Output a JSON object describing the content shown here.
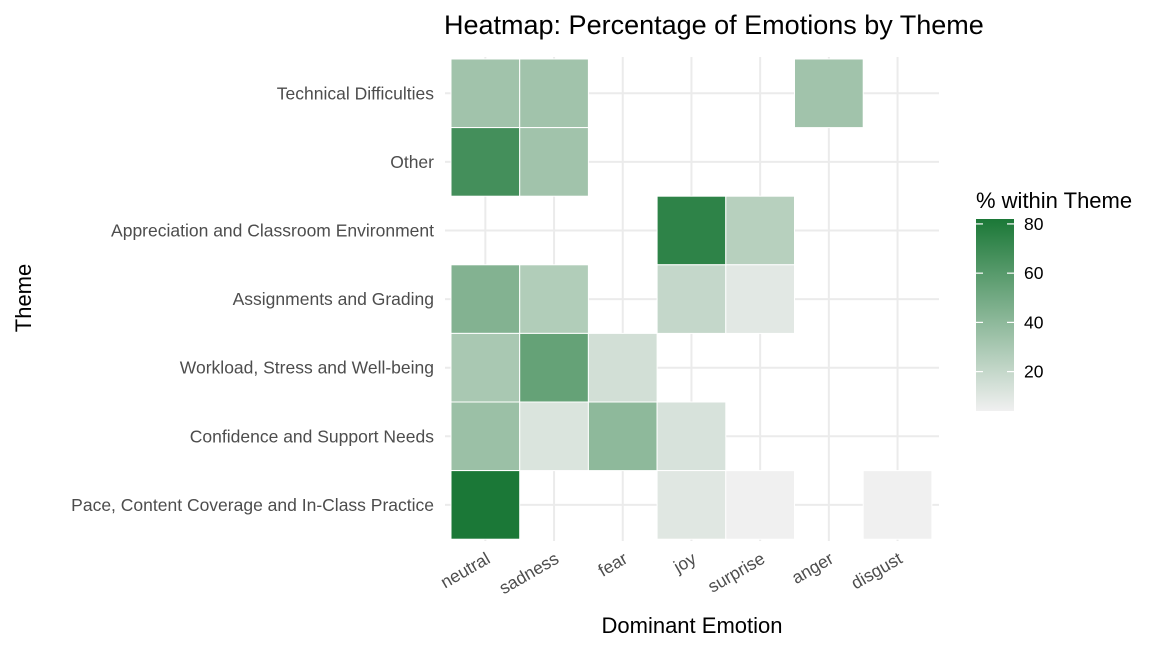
{
  "chart_data": {
    "type": "heatmap",
    "title": "Heatmap: Percentage of Emotions by Theme",
    "xlabel": "Dominant Emotion",
    "ylabel": "Theme",
    "x_categories": [
      "neutral",
      "sadness",
      "fear",
      "joy",
      "surprise",
      "anger",
      "disgust"
    ],
    "y_categories": [
      "Technical Difficulties",
      "Other",
      "Appreciation and Classroom Environment",
      "Assignments and Grading",
      "Workload, Stress and Well-being",
      "Confidence and Support Needs",
      "Pace, Content Coverage and In-Class Practice"
    ],
    "cells": [
      {
        "theme": "Technical Difficulties",
        "emotion": "neutral",
        "value": 33
      },
      {
        "theme": "Technical Difficulties",
        "emotion": "sadness",
        "value": 33
      },
      {
        "theme": "Technical Difficulties",
        "emotion": "anger",
        "value": 33
      },
      {
        "theme": "Other",
        "emotion": "neutral",
        "value": 67
      },
      {
        "theme": "Other",
        "emotion": "sadness",
        "value": 33
      },
      {
        "theme": "Appreciation and Classroom Environment",
        "emotion": "joy",
        "value": 75
      },
      {
        "theme": "Appreciation and Classroom Environment",
        "emotion": "surprise",
        "value": 25
      },
      {
        "theme": "Assignments and Grading",
        "emotion": "neutral",
        "value": 44
      },
      {
        "theme": "Assignments and Grading",
        "emotion": "sadness",
        "value": 27
      },
      {
        "theme": "Assignments and Grading",
        "emotion": "joy",
        "value": 20
      },
      {
        "theme": "Assignments and Grading",
        "emotion": "surprise",
        "value": 9
      },
      {
        "theme": "Workload, Stress and Well-being",
        "emotion": "neutral",
        "value": 30
      },
      {
        "theme": "Workload, Stress and Well-being",
        "emotion": "sadness",
        "value": 55
      },
      {
        "theme": "Workload, Stress and Well-being",
        "emotion": "fear",
        "value": 15
      },
      {
        "theme": "Confidence and Support Needs",
        "emotion": "neutral",
        "value": 35
      },
      {
        "theme": "Confidence and Support Needs",
        "emotion": "sadness",
        "value": 12
      },
      {
        "theme": "Confidence and Support Needs",
        "emotion": "fear",
        "value": 40
      },
      {
        "theme": "Confidence and Support Needs",
        "emotion": "joy",
        "value": 13
      },
      {
        "theme": "Pace, Content Coverage and In-Class Practice",
        "emotion": "neutral",
        "value": 82
      },
      {
        "theme": "Pace, Content Coverage and In-Class Practice",
        "emotion": "joy",
        "value": 10
      },
      {
        "theme": "Pace, Content Coverage and In-Class Practice",
        "emotion": "surprise",
        "value": 4
      },
      {
        "theme": "Pace, Content Coverage and In-Class Practice",
        "emotion": "disgust",
        "value": 4
      }
    ],
    "legend": {
      "title": "% within Theme",
      "ticks": [
        20,
        40,
        60,
        80
      ],
      "range": [
        4,
        82
      ],
      "placement": "right"
    },
    "colors": {
      "low": "#f0f0f0",
      "high": "#1b7837",
      "grid": "#ebebeb",
      "tile_border": "#ffffff"
    },
    "grid": true
  }
}
